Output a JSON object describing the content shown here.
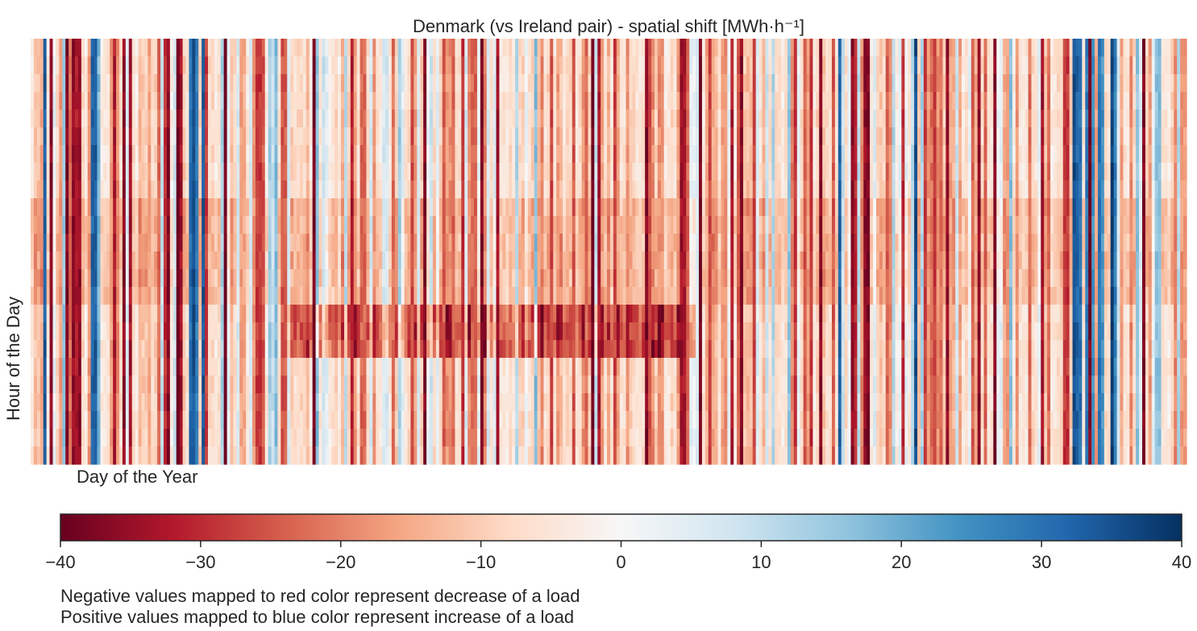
{
  "chart_data": {
    "type": "heatmap",
    "title": "Denmark (vs Ireland pair) - spatial shift [MWh·h⁻¹]",
    "xlabel": "Day of the Year",
    "ylabel": "Hour of the Day",
    "x_range": [
      1,
      365
    ],
    "y_range": [
      0,
      23
    ],
    "x_ticks_shown": false,
    "y_ticks_shown": false,
    "colormap": "RdBu",
    "colormap_stops": [
      "#67001f",
      "#b2182b",
      "#d6604d",
      "#f4a582",
      "#fddbc7",
      "#f7f7f7",
      "#d1e5f0",
      "#92c5de",
      "#4393c3",
      "#2166ac",
      "#053061"
    ],
    "colorbar": {
      "orientation": "horizontal",
      "location": "below",
      "vmin": -40,
      "vmax": 40,
      "ticks": [
        -40,
        -30,
        -20,
        -10,
        0,
        10,
        20,
        30,
        40
      ],
      "tick_labels": [
        "−40",
        "−30",
        "−20",
        "−10",
        "0",
        "10",
        "20",
        "30",
        "40"
      ]
    },
    "notes": [
      "Negative values mapped to red color represent decrease of a load",
      "Positive values mapped to blue color represent increase of a load"
    ],
    "pattern_estimates": {
      "strong_negative_days": [
        7,
        12,
        14,
        15,
        16,
        27,
        30,
        32,
        44,
        47,
        48,
        62,
        90,
        102,
        125,
        143,
        148,
        178,
        180,
        195,
        206,
        207,
        212,
        222,
        225,
        250,
        260,
        264,
        265,
        290,
        300,
        305,
        320,
        335,
        352
      ],
      "strong_positive_days": [
        5,
        20,
        21,
        51,
        52,
        53,
        55,
        102,
        256,
        280,
        330,
        331,
        332,
        334,
        335,
        336,
        338,
        339,
        342,
        343
      ],
      "evening_negative_band_hours": [
        15,
        16,
        17
      ],
      "evening_negative_band_days": [
        80,
        210
      ]
    }
  }
}
